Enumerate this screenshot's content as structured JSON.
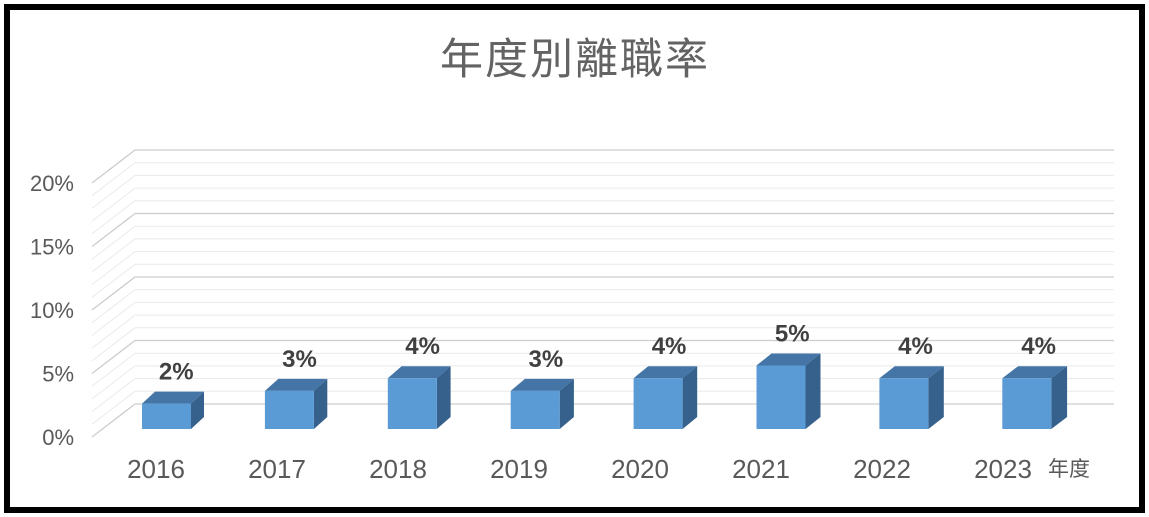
{
  "chart_data": {
    "type": "bar",
    "style": "3d-column",
    "title": "年度別離職率",
    "xlabel": "年度",
    "ylabel": "",
    "categories": [
      "2016",
      "2017",
      "2018",
      "2019",
      "2020",
      "2021",
      "2022",
      "2023"
    ],
    "values": [
      2,
      3,
      4,
      3,
      4,
      5,
      4,
      4
    ],
    "data_labels": [
      "2%",
      "3%",
      "4%",
      "3%",
      "4%",
      "5%",
      "4%",
      "4%"
    ],
    "unit": "%",
    "ylim": [
      0,
      20
    ],
    "y_major_unit": 5,
    "y_minor_unit": 1,
    "y_tick_labels": [
      "0%",
      "5%",
      "10%",
      "15%",
      "20%"
    ],
    "grid": "horizontal major and minor gridlines on 3d back wall",
    "legend": "none",
    "colors": {
      "bar_front": "#5B9BD5",
      "bar_top": "#4475A6",
      "bar_side": "#35618C",
      "grid_major": "#CDCDCD",
      "grid_minor": "#EAEAEA",
      "axis_text": "#595959",
      "title_text": "#636363",
      "data_label_text": "#404040",
      "frame_border": "#000000",
      "background": "#FFFFFF"
    }
  }
}
